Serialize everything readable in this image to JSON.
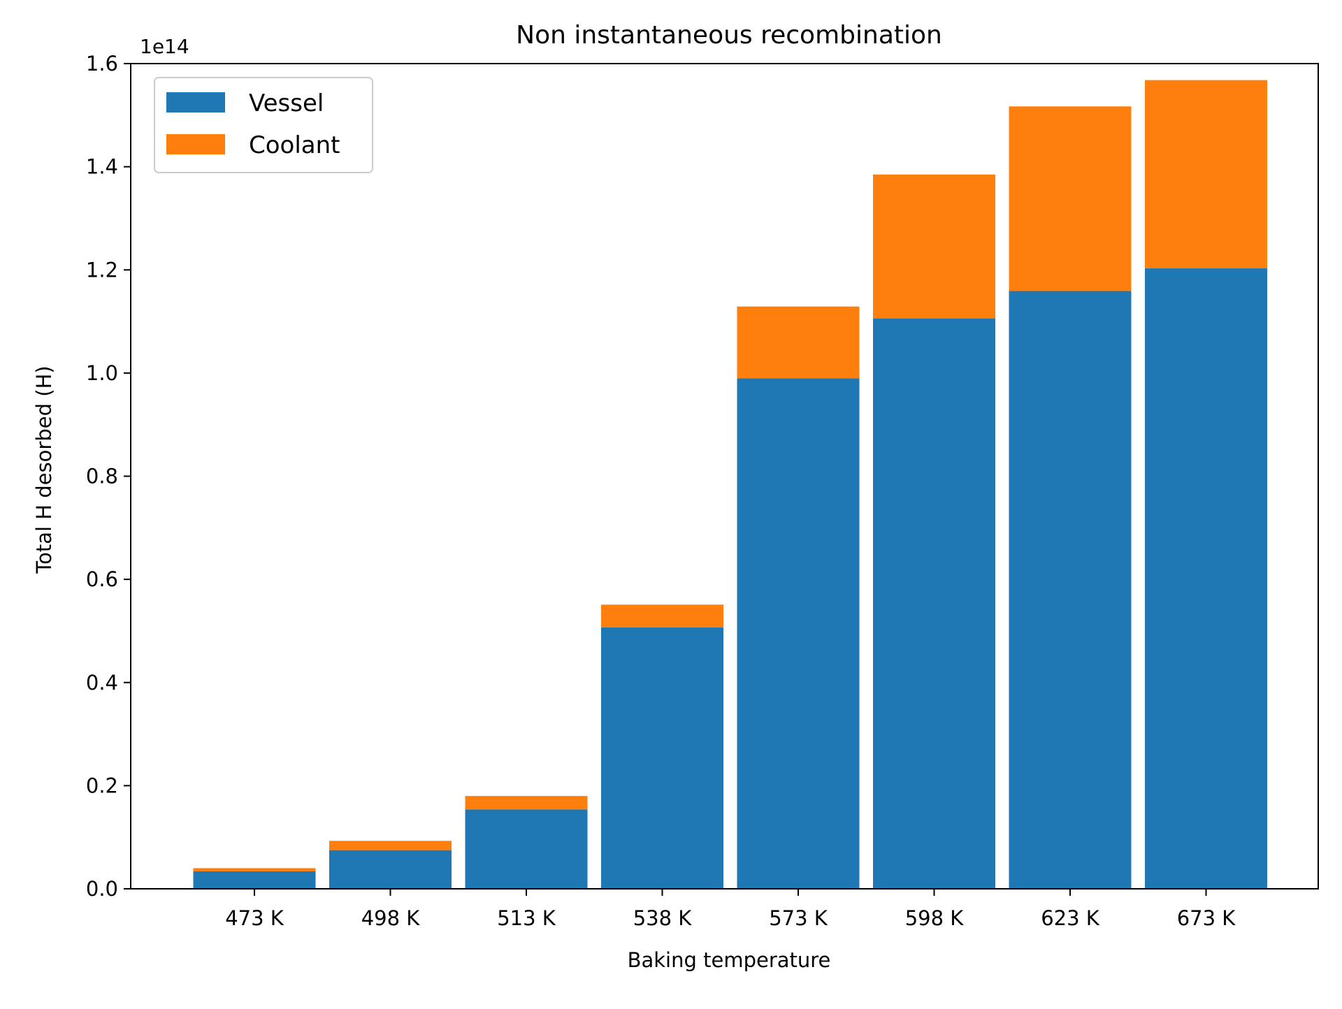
{
  "chart_data": {
    "type": "bar",
    "stacked": true,
    "title": "Non instantaneous recombination",
    "xlabel": "Baking temperature",
    "ylabel": "Total H desorbed (H)",
    "y_scale_label": "1e14",
    "y_scale_factor": 100000000000000.0,
    "ylim": [
      0,
      1.6
    ],
    "yticks": [
      "0.0",
      "0.2",
      "0.4",
      "0.6",
      "0.8",
      "1.0",
      "1.2",
      "1.4",
      "1.6"
    ],
    "grid": false,
    "legend_position": "top-left",
    "categories": [
      "473 K",
      "498 K",
      "513 K",
      "538 K",
      "573 K",
      "598 K",
      "623 K",
      "673 K"
    ],
    "series": [
      {
        "name": "Vessel",
        "color": "#1f77b4",
        "values": [
          0.034,
          0.075,
          0.154,
          0.507,
          0.99,
          1.106,
          1.159,
          1.203
        ]
      },
      {
        "name": "Coolant",
        "color": "#ff7f0e",
        "values": [
          0.006,
          0.018,
          0.026,
          0.044,
          0.139,
          0.279,
          0.358,
          0.365
        ]
      }
    ]
  }
}
